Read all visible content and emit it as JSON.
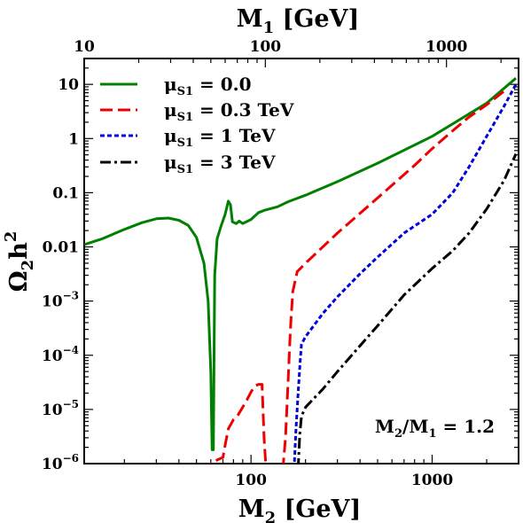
{
  "chart_data": {
    "type": "line",
    "bottom_axis": {
      "label_main": "M",
      "label_sub": "2",
      "label_unit": " [GeV]",
      "scale": "log",
      "range": [
        12,
        3000
      ],
      "ticks": [
        100,
        1000
      ],
      "tick_labels": [
        "100",
        "1000"
      ]
    },
    "top_axis": {
      "label_main": "M",
      "label_sub": "1",
      "label_unit": " [GeV]",
      "scale": "log",
      "range": [
        10,
        2500
      ],
      "ticks": [
        10,
        100,
        1000
      ],
      "tick_labels": [
        "10",
        "100",
        "1000"
      ]
    },
    "y_axis": {
      "label_main": "Ω",
      "label_sub": "2",
      "label_mid": "h",
      "label_sup": "2",
      "scale": "log",
      "range": [
        1e-06,
        30
      ],
      "ticks": [
        {
          "value": 10,
          "base": "10",
          "exp": ""
        },
        {
          "value": 1,
          "base": "1",
          "exp": ""
        },
        {
          "value": 0.1,
          "base": "0.1",
          "exp": ""
        },
        {
          "value": 0.01,
          "base": "0.01",
          "exp": ""
        },
        {
          "value": 0.001,
          "base": "10",
          "exp": "−3"
        },
        {
          "value": 0.0001,
          "base": "10",
          "exp": "−4"
        },
        {
          "value": 1e-05,
          "base": "10",
          "exp": "−5"
        },
        {
          "value": 1e-06,
          "base": "10",
          "exp": "−6"
        }
      ]
    },
    "annotation": {
      "main": "M",
      "sub1": "2",
      "mid": "/M",
      "sub2": "1",
      "tail": " = 1.2"
    },
    "grid": false,
    "legend_position": "top-left",
    "series": [
      {
        "name_main": "μ",
        "name_sub": "S1",
        "name_tail": " = 0.0",
        "color": "#008000",
        "dash": "",
        "points": [
          [
            12,
            0.011
          ],
          [
            15,
            0.014
          ],
          [
            20,
            0.021
          ],
          [
            25,
            0.028
          ],
          [
            30,
            0.033
          ],
          [
            35,
            0.034
          ],
          [
            40,
            0.031
          ],
          [
            45,
            0.025
          ],
          [
            50,
            0.015
          ],
          [
            55,
            0.005
          ],
          [
            58,
            0.001
          ],
          [
            60,
            5e-05
          ],
          [
            61,
            1.8e-06
          ],
          [
            62,
            1.8e-06
          ],
          [
            62.5,
            0.0001
          ],
          [
            63,
            0.003
          ],
          [
            65,
            0.014
          ],
          [
            68,
            0.023
          ],
          [
            72,
            0.04
          ],
          [
            75,
            0.07
          ],
          [
            77,
            0.06
          ],
          [
            79,
            0.029
          ],
          [
            83,
            0.027
          ],
          [
            86,
            0.03
          ],
          [
            90,
            0.027
          ],
          [
            100,
            0.032
          ],
          [
            110,
            0.043
          ],
          [
            120,
            0.048
          ],
          [
            140,
            0.055
          ],
          [
            160,
            0.068
          ],
          [
            200,
            0.09
          ],
          [
            300,
            0.16
          ],
          [
            500,
            0.35
          ],
          [
            1000,
            1.1
          ],
          [
            2000,
            4.5
          ],
          [
            2900,
            13
          ]
        ]
      },
      {
        "name_main": "μ",
        "name_sub": "S1",
        "name_tail": " = 0.3 TeV",
        "color": "#ee0000",
        "dash": "14,6",
        "points": [
          [
            54,
            7e-07
          ],
          [
            60,
            1e-06
          ],
          [
            63,
            1.1e-06
          ],
          [
            66,
            1.2e-06
          ],
          [
            70,
            1.3e-06
          ],
          [
            72,
            2.2e-06
          ],
          [
            75,
            4.4e-06
          ],
          [
            80,
            6.5e-06
          ],
          [
            85,
            8e-06
          ],
          [
            90,
            1.1e-05
          ],
          [
            95,
            1.5e-05
          ],
          [
            100,
            2.1e-05
          ],
          [
            105,
            2.7e-05
          ],
          [
            110,
            2.9e-05
          ],
          [
            115,
            2.9e-05
          ],
          [
            116,
            1.5e-05
          ],
          [
            118,
            3e-06
          ],
          [
            121,
            8e-07
          ],
          [
            150,
            8e-07
          ],
          [
            155,
            3e-06
          ],
          [
            160,
            3e-05
          ],
          [
            165,
            0.0003
          ],
          [
            170,
            0.0015
          ],
          [
            180,
            0.0035
          ],
          [
            200,
            0.005
          ],
          [
            300,
            0.018
          ],
          [
            500,
            0.08
          ],
          [
            800,
            0.32
          ],
          [
            1000,
            0.65
          ],
          [
            1300,
            1.4
          ],
          [
            1600,
            2.5
          ],
          [
            2000,
            4.2
          ],
          [
            2500,
            7.5
          ]
        ]
      },
      {
        "name_main": "μ",
        "name_sub": "S1",
        "name_tail": " = 1 TeV",
        "color": "#0000dd",
        "dash": "5,3",
        "points": [
          [
            173,
            8e-07
          ],
          [
            177,
            4e-06
          ],
          [
            182,
            2e-05
          ],
          [
            187,
            8e-05
          ],
          [
            190,
            0.00016
          ],
          [
            200,
            0.00022
          ],
          [
            250,
            0.0006
          ],
          [
            300,
            0.0012
          ],
          [
            400,
            0.0032
          ],
          [
            500,
            0.0065
          ],
          [
            700,
            0.018
          ],
          [
            1000,
            0.04
          ],
          [
            1300,
            0.1
          ],
          [
            1600,
            0.3
          ],
          [
            2000,
            1.1
          ],
          [
            2500,
            4
          ],
          [
            2900,
            10
          ]
        ]
      },
      {
        "name_main": "μ",
        "name_sub": "S1",
        "name_tail": " = 3 TeV",
        "color": "#000000",
        "dash": "12,4,3,4",
        "points": [
          [
            182,
            8e-07
          ],
          [
            186,
            3.5e-06
          ],
          [
            190,
            7.5e-06
          ],
          [
            200,
            1.1e-05
          ],
          [
            250,
            2.4e-05
          ],
          [
            300,
            5e-05
          ],
          [
            400,
            0.00015
          ],
          [
            500,
            0.00035
          ],
          [
            700,
            0.0013
          ],
          [
            1000,
            0.004
          ],
          [
            1300,
            0.0085
          ],
          [
            1600,
            0.018
          ],
          [
            2000,
            0.05
          ],
          [
            2500,
            0.17
          ],
          [
            2900,
            0.52
          ]
        ]
      }
    ]
  }
}
